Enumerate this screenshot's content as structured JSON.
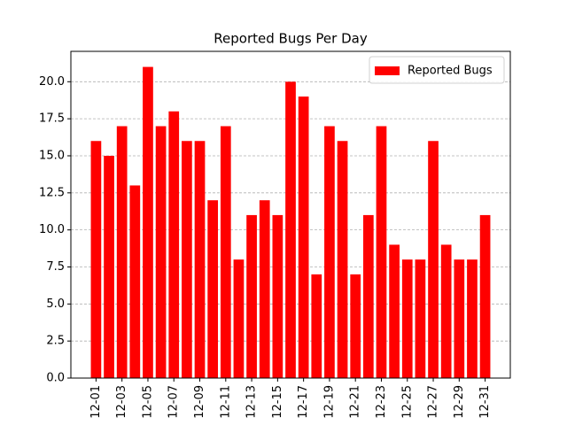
{
  "chart_data": {
    "type": "bar",
    "title": "Reported Bugs Per Day",
    "categories": [
      "12-01",
      null,
      "12-03",
      null,
      "12-05",
      null,
      "12-07",
      null,
      "12-09",
      null,
      "12-11",
      null,
      "12-13",
      null,
      "12-15",
      null,
      "12-17",
      null,
      "12-19",
      null,
      "12-21",
      null,
      "12-23",
      null,
      "12-25",
      null,
      "12-27",
      null,
      "12-29",
      null,
      "12-31"
    ],
    "series": [
      {
        "name": "Reported Bugs",
        "color": "#ff0000",
        "values": [
          16,
          15,
          17,
          13,
          21,
          17,
          18,
          16,
          16,
          12,
          17,
          8,
          11,
          12,
          11,
          20,
          19,
          7,
          17,
          16,
          7,
          11,
          17,
          9,
          8,
          8,
          16,
          9,
          8,
          8,
          11
        ]
      }
    ],
    "ylim": [
      0,
      22.05
    ],
    "yticks": [
      {
        "value": 0,
        "label": "0.0"
      },
      2.5,
      {
        "value": 5,
        "label": "5.0"
      },
      7.5,
      {
        "value": 10,
        "label": "10.0"
      },
      12.5,
      {
        "value": 15,
        "label": "15.0"
      },
      17.5,
      {
        "value": 20,
        "label": "20.0"
      }
    ],
    "grid": true,
    "legend": "upper-right"
  }
}
